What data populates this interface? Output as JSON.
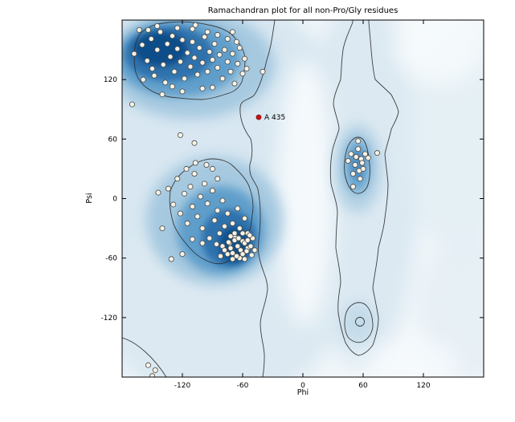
{
  "figure": {
    "title": "Ramachandran plot for all non-Pro/Gly residues",
    "xlabel": "Phi",
    "ylabel": "Psi"
  },
  "chart_data": {
    "type": "scatter",
    "title": "Ramachandran plot for all non-Pro/Gly residues",
    "xlabel": "Phi",
    "ylabel": "Psi",
    "xlim": [
      -180,
      180
    ],
    "ylim": [
      -180,
      180
    ],
    "xticks": [
      -120,
      -60,
      0,
      60,
      120
    ],
    "yticks": [
      -120,
      -60,
      0,
      60,
      120
    ],
    "grid": false,
    "legend": "none",
    "background_regions": "Kernel-density shading of favored regions (beta-sheet upper-left, alpha-helix mid-left, left-handed-alpha right, small allowed region lower-right) with black contour outlines on a pale blue field",
    "series": [
      {
        "name": "residues",
        "marker": "circle",
        "fill": "#f7f3e6",
        "edge": "#4a4a4a",
        "points": [
          [
            -160,
            155
          ],
          [
            -155,
            139
          ],
          [
            -151,
            161
          ],
          [
            -148,
            124
          ],
          [
            -145,
            150
          ],
          [
            -142,
            168
          ],
          [
            -139,
            135
          ],
          [
            -137,
            117
          ],
          [
            -135,
            156
          ],
          [
            -132,
            143
          ],
          [
            -130,
            164
          ],
          [
            -128,
            128
          ],
          [
            -125,
            151
          ],
          [
            -122,
            138
          ],
          [
            -120,
            160
          ],
          [
            -118,
            121
          ],
          [
            -115,
            147
          ],
          [
            -112,
            133
          ],
          [
            -110,
            158
          ],
          [
            -108,
            142
          ],
          [
            -105,
            125
          ],
          [
            -103,
            152
          ],
          [
            -100,
            137
          ],
          [
            -98,
            163
          ],
          [
            -95,
            128
          ],
          [
            -93,
            148
          ],
          [
            -90,
            140
          ],
          [
            -88,
            156
          ],
          [
            -85,
            132
          ],
          [
            -83,
            145
          ],
          [
            -80,
            121
          ],
          [
            -78,
            150
          ],
          [
            -75,
            138
          ],
          [
            -72,
            128
          ],
          [
            -70,
            146
          ],
          [
            -68,
            116
          ],
          [
            -65,
            136
          ],
          [
            -63,
            152
          ],
          [
            -60,
            126
          ],
          [
            -58,
            141
          ],
          [
            -120,
            108
          ],
          [
            -100,
            111
          ],
          [
            -140,
            105
          ],
          [
            -90,
            112
          ],
          [
            -154,
            170
          ],
          [
            -110,
            171
          ],
          [
            -95,
            168
          ],
          [
            -75,
            161
          ],
          [
            -130,
            113
          ],
          [
            -85,
            165
          ],
          [
            -66,
            158
          ],
          [
            -150,
            131
          ],
          [
            -159,
            120
          ],
          [
            -70,
            168
          ],
          [
            -56,
            131
          ],
          [
            -168,
            146
          ],
          [
            -163,
            170
          ],
          [
            -145,
            174
          ],
          [
            -125,
            172
          ],
          [
            -107,
            175
          ],
          [
            -122,
            64
          ],
          [
            -108,
            56
          ],
          [
            -170,
            95
          ],
          [
            -40,
            128
          ],
          [
            -134,
            10
          ],
          [
            -129,
            -6
          ],
          [
            -125,
            20
          ],
          [
            -122,
            -15
          ],
          [
            -118,
            5
          ],
          [
            -115,
            -25
          ],
          [
            -112,
            12
          ],
          [
            -110,
            -8
          ],
          [
            -108,
            25
          ],
          [
            -105,
            -18
          ],
          [
            -102,
            2
          ],
          [
            -100,
            -30
          ],
          [
            -98,
            15
          ],
          [
            -95,
            -5
          ],
          [
            -93,
            -40
          ],
          [
            -90,
            8
          ],
          [
            -88,
            -22
          ],
          [
            -85,
            -12
          ],
          [
            -83,
            -35
          ],
          [
            -80,
            -2
          ],
          [
            -78,
            -28
          ],
          [
            -75,
            -15
          ],
          [
            -73,
            -45
          ],
          [
            -70,
            -25
          ],
          [
            -68,
            -38
          ],
          [
            -65,
            -10
          ],
          [
            -63,
            -30
          ],
          [
            -60,
            -43
          ],
          [
            -58,
            -20
          ],
          [
            -55,
            -35
          ],
          [
            -90,
            30
          ],
          [
            -85,
            20
          ],
          [
            -96,
            34
          ],
          [
            -70,
            -55
          ],
          [
            -65,
            -48
          ],
          [
            -62,
            -52
          ],
          [
            -60,
            -56
          ],
          [
            -58,
            -45
          ],
          [
            -55,
            -50
          ],
          [
            -68,
            -42
          ],
          [
            -72,
            -50
          ],
          [
            -75,
            -56
          ],
          [
            -80,
            -48
          ],
          [
            -63,
            -60
          ],
          [
            -58,
            -61
          ],
          [
            -66,
            -58
          ],
          [
            -70,
            -61
          ],
          [
            -74,
            -44
          ],
          [
            -78,
            -52
          ],
          [
            -82,
            -58
          ],
          [
            -86,
            -46
          ],
          [
            -60,
            -35
          ],
          [
            -64,
            -40
          ],
          [
            -68,
            -35
          ],
          [
            -72,
            -38
          ],
          [
            -55,
            -42
          ],
          [
            -52,
            -48
          ],
          [
            -56,
            -53
          ],
          [
            -50,
            -40
          ],
          [
            -53,
            -37
          ],
          [
            -100,
            -45
          ],
          [
            -110,
            -41
          ],
          [
            -120,
            -56
          ],
          [
            -131,
            -61
          ],
          [
            -140,
            -30
          ],
          [
            -144,
            6
          ],
          [
            -107,
            36
          ],
          [
            -116,
            30
          ],
          [
            -48,
            -52
          ],
          [
            -51,
            -57
          ],
          [
            58,
            40
          ],
          [
            52,
            34
          ],
          [
            60,
            30
          ],
          [
            48,
            45
          ],
          [
            55,
            50
          ],
          [
            62,
            45
          ],
          [
            50,
            25
          ],
          [
            57,
            20
          ],
          [
            53,
            42
          ],
          [
            59,
            36
          ],
          [
            45,
            38
          ],
          [
            65,
            41
          ],
          [
            55,
            58
          ],
          [
            74,
            46
          ],
          [
            50,
            12
          ],
          [
            56,
            28
          ],
          [
            -154,
            -168
          ],
          [
            -147,
            -173
          ],
          [
            -150,
            -179
          ]
        ]
      },
      {
        "name": "highlighted-residue",
        "marker": "circle",
        "fill": "#cc1111",
        "edge": "#7a0a0a",
        "points": [
          [
            -44,
            82
          ]
        ]
      }
    ],
    "annotations": [
      {
        "text": "A 435",
        "x": -44,
        "y": 82,
        "dx": 7,
        "dy": 3
      }
    ],
    "colors": {
      "contour": "#2b2b2b",
      "density_darkest": "#0f4d8a",
      "density_dark": "#2d72ad",
      "density_mid": "#5e9ecb",
      "density_light": "#a6c9e0",
      "density_pale": "#d8e7f1",
      "plot_bg": "#f2f7fa",
      "point_fill": "#f7f3e6",
      "point_edge": "#4a4a4a",
      "highlight": "#cc1111"
    }
  }
}
